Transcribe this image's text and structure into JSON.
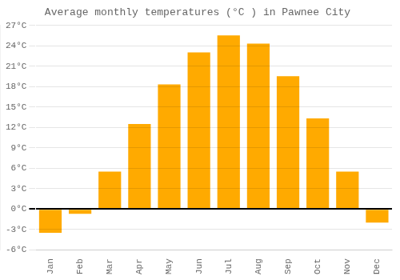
{
  "chart_data": {
    "type": "bar",
    "title": "Average monthly temperatures (°C ) in Pawnee City",
    "categories": [
      "Jan",
      "Feb",
      "Mar",
      "Apr",
      "May",
      "Jun",
      "Jul",
      "Aug",
      "Sep",
      "Oct",
      "Nov",
      "Dec"
    ],
    "values": [
      -3.5,
      -0.7,
      5.5,
      12.5,
      18.3,
      23.0,
      25.5,
      24.3,
      19.5,
      13.3,
      5.5,
      -2.0
    ],
    "color": "#FFAA00",
    "ylim": [
      -6,
      27
    ],
    "yticks": [
      {
        "value": -6,
        "label": "-6°C"
      },
      {
        "value": -3,
        "label": "-3°C"
      },
      {
        "value": 0,
        "label": "0°C"
      },
      {
        "value": 3,
        "label": "3°C"
      },
      {
        "value": 6,
        "label": "6°C"
      },
      {
        "value": 9,
        "label": "9°C"
      },
      {
        "value": 12,
        "label": "12°C"
      },
      {
        "value": 15,
        "label": "15°C"
      },
      {
        "value": 18,
        "label": "18°C"
      },
      {
        "value": 21,
        "label": "21°C"
      },
      {
        "value": 24,
        "label": "24°C"
      },
      {
        "value": 27,
        "label": "27°C"
      }
    ],
    "grid": true
  }
}
